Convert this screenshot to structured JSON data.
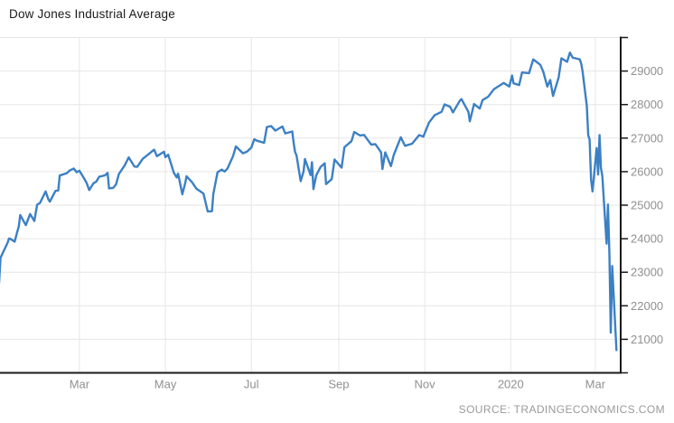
{
  "header": {
    "title": "Dow Jones Industrial Average"
  },
  "footer": {
    "source": "SOURCE: TRADINGECONOMICS.COM"
  },
  "chart_data": {
    "type": "line",
    "title": "Dow Jones Industrial Average",
    "xlabel": "",
    "ylabel": "",
    "ylim": [
      20000,
      30000
    ],
    "grid": true,
    "legend_position": "none",
    "line_color": "#3c80c4",
    "grid_color": "#e6e6e6",
    "axis_color": "#1a1a1a",
    "label_color": "#909090",
    "y_ticks": [
      21000,
      22000,
      23000,
      24000,
      25000,
      26000,
      27000,
      28000,
      29000
    ],
    "x_ticks": [
      {
        "label": "Mar",
        "date": "2019-03-01"
      },
      {
        "label": "May",
        "date": "2019-05-01"
      },
      {
        "label": "Jul",
        "date": "2019-07-01"
      },
      {
        "label": "Sep",
        "date": "2019-09-01"
      },
      {
        "label": "Nov",
        "date": "2019-11-01"
      },
      {
        "label": "2020",
        "date": "2020-01-01"
      },
      {
        "label": "Mar",
        "date": "2020-03-01"
      }
    ],
    "series": [
      {
        "name": "Dow Jones Industrial Average",
        "points": [
          [
            "2019-01-03",
            22686
          ],
          [
            "2019-01-04",
            23433
          ],
          [
            "2019-01-08",
            23787
          ],
          [
            "2019-01-09",
            23879
          ],
          [
            "2019-01-10",
            24002
          ],
          [
            "2019-01-11",
            23996
          ],
          [
            "2019-01-14",
            23910
          ],
          [
            "2019-01-15",
            24066
          ],
          [
            "2019-01-17",
            24370
          ],
          [
            "2019-01-18",
            24706
          ],
          [
            "2019-01-22",
            24404
          ],
          [
            "2019-01-25",
            24737
          ],
          [
            "2019-01-28",
            24528
          ],
          [
            "2019-01-30",
            25014
          ],
          [
            "2019-02-01",
            25064
          ],
          [
            "2019-02-05",
            25411
          ],
          [
            "2019-02-07",
            25170
          ],
          [
            "2019-02-08",
            25106
          ],
          [
            "2019-02-12",
            25425
          ],
          [
            "2019-02-14",
            25439
          ],
          [
            "2019-02-15",
            25883
          ],
          [
            "2019-02-20",
            25954
          ],
          [
            "2019-02-22",
            26032
          ],
          [
            "2019-02-25",
            26092
          ],
          [
            "2019-02-27",
            25985
          ],
          [
            "2019-03-01",
            26026
          ],
          [
            "2019-03-04",
            25819
          ],
          [
            "2019-03-06",
            25673
          ],
          [
            "2019-03-08",
            25450
          ],
          [
            "2019-03-11",
            25651
          ],
          [
            "2019-03-13",
            25703
          ],
          [
            "2019-03-15",
            25849
          ],
          [
            "2019-03-19",
            25887
          ],
          [
            "2019-03-21",
            25963
          ],
          [
            "2019-03-22",
            25502
          ],
          [
            "2019-03-25",
            25517
          ],
          [
            "2019-03-27",
            25626
          ],
          [
            "2019-03-29",
            25929
          ],
          [
            "2019-04-02",
            26179
          ],
          [
            "2019-04-05",
            26425
          ],
          [
            "2019-04-09",
            26150
          ],
          [
            "2019-04-11",
            26143
          ],
          [
            "2019-04-15",
            26385
          ],
          [
            "2019-04-17",
            26449
          ],
          [
            "2019-04-23",
            26656
          ],
          [
            "2019-04-25",
            26462
          ],
          [
            "2019-04-30",
            26593
          ],
          [
            "2019-05-01",
            26430
          ],
          [
            "2019-05-03",
            26505
          ],
          [
            "2019-05-07",
            25965
          ],
          [
            "2019-05-09",
            25828
          ],
          [
            "2019-05-10",
            25942
          ],
          [
            "2019-05-13",
            25325
          ],
          [
            "2019-05-15",
            25648
          ],
          [
            "2019-05-16",
            25862
          ],
          [
            "2019-05-20",
            25680
          ],
          [
            "2019-05-23",
            25490
          ],
          [
            "2019-05-28",
            25348
          ],
          [
            "2019-05-31",
            24815
          ],
          [
            "2019-06-03",
            24819
          ],
          [
            "2019-06-04",
            25332
          ],
          [
            "2019-06-07",
            25984
          ],
          [
            "2019-06-10",
            26063
          ],
          [
            "2019-06-12",
            26004
          ],
          [
            "2019-06-14",
            26090
          ],
          [
            "2019-06-18",
            26466
          ],
          [
            "2019-06-20",
            26753
          ],
          [
            "2019-06-25",
            26548
          ],
          [
            "2019-06-28",
            26600
          ],
          [
            "2019-07-01",
            26717
          ],
          [
            "2019-07-03",
            26966
          ],
          [
            "2019-07-05",
            26922
          ],
          [
            "2019-07-10",
            26860
          ],
          [
            "2019-07-12",
            27332
          ],
          [
            "2019-07-15",
            27359
          ],
          [
            "2019-07-18",
            27223
          ],
          [
            "2019-07-23",
            27349
          ],
          [
            "2019-07-25",
            27141
          ],
          [
            "2019-07-30",
            27198
          ],
          [
            "2019-07-31",
            26864
          ],
          [
            "2019-08-01",
            26583
          ],
          [
            "2019-08-02",
            26485
          ],
          [
            "2019-08-05",
            25718
          ],
          [
            "2019-08-07",
            26007
          ],
          [
            "2019-08-08",
            26378
          ],
          [
            "2019-08-12",
            25897
          ],
          [
            "2019-08-13",
            26280
          ],
          [
            "2019-08-14",
            25479
          ],
          [
            "2019-08-16",
            25886
          ],
          [
            "2019-08-19",
            26136
          ],
          [
            "2019-08-22",
            26252
          ],
          [
            "2019-08-23",
            25629
          ],
          [
            "2019-08-27",
            25778
          ],
          [
            "2019-08-29",
            26362
          ],
          [
            "2019-09-03",
            26118
          ],
          [
            "2019-09-05",
            26728
          ],
          [
            "2019-09-10",
            26909
          ],
          [
            "2019-09-12",
            27182
          ],
          [
            "2019-09-16",
            27077
          ],
          [
            "2019-09-19",
            27095
          ],
          [
            "2019-09-24",
            26808
          ],
          [
            "2019-09-27",
            26820
          ],
          [
            "2019-10-01",
            26573
          ],
          [
            "2019-10-02",
            26078
          ],
          [
            "2019-10-04",
            26574
          ],
          [
            "2019-10-08",
            26164
          ],
          [
            "2019-10-10",
            26496
          ],
          [
            "2019-10-15",
            27025
          ],
          [
            "2019-10-18",
            26770
          ],
          [
            "2019-10-23",
            26834
          ],
          [
            "2019-10-28",
            27090
          ],
          [
            "2019-10-31",
            27046
          ],
          [
            "2019-11-04",
            27462
          ],
          [
            "2019-11-08",
            27681
          ],
          [
            "2019-11-13",
            27784
          ],
          [
            "2019-11-15",
            28005
          ],
          [
            "2019-11-19",
            27934
          ],
          [
            "2019-11-21",
            27766
          ],
          [
            "2019-11-26",
            28121
          ],
          [
            "2019-11-27",
            28164
          ],
          [
            "2019-12-02",
            27783
          ],
          [
            "2019-12-03",
            27502
          ],
          [
            "2019-12-06",
            28015
          ],
          [
            "2019-12-10",
            27882
          ],
          [
            "2019-12-12",
            28132
          ],
          [
            "2019-12-16",
            28235
          ],
          [
            "2019-12-20",
            28455
          ],
          [
            "2019-12-27",
            28645
          ],
          [
            "2019-12-31",
            28538
          ],
          [
            "2020-01-02",
            28868
          ],
          [
            "2020-01-03",
            28634
          ],
          [
            "2020-01-07",
            28583
          ],
          [
            "2020-01-09",
            28957
          ],
          [
            "2020-01-14",
            28939
          ],
          [
            "2020-01-17",
            29348
          ],
          [
            "2020-01-22",
            29186
          ],
          [
            "2020-01-24",
            28989
          ],
          [
            "2020-01-27",
            28536
          ],
          [
            "2020-01-29",
            28734
          ],
          [
            "2020-01-31",
            28256
          ],
          [
            "2020-02-04",
            28807
          ],
          [
            "2020-02-06",
            29380
          ],
          [
            "2020-02-10",
            29276
          ],
          [
            "2020-02-12",
            29551
          ],
          [
            "2020-02-14",
            29398
          ],
          [
            "2020-02-19",
            29348
          ],
          [
            "2020-02-20",
            29220
          ],
          [
            "2020-02-21",
            28992
          ],
          [
            "2020-02-24",
            27960
          ],
          [
            "2020-02-25",
            27081
          ],
          [
            "2020-02-26",
            26958
          ],
          [
            "2020-02-27",
            25766
          ],
          [
            "2020-02-28",
            25409
          ],
          [
            "2020-03-02",
            26703
          ],
          [
            "2020-03-03",
            25917
          ],
          [
            "2020-03-04",
            27090
          ],
          [
            "2020-03-05",
            26121
          ],
          [
            "2020-03-06",
            25864
          ],
          [
            "2020-03-09",
            23851
          ],
          [
            "2020-03-10",
            25018
          ],
          [
            "2020-03-11",
            23553
          ],
          [
            "2020-03-12",
            21200
          ],
          [
            "2020-03-13",
            23185
          ],
          [
            "2020-03-16",
            20680
          ]
        ]
      }
    ]
  }
}
